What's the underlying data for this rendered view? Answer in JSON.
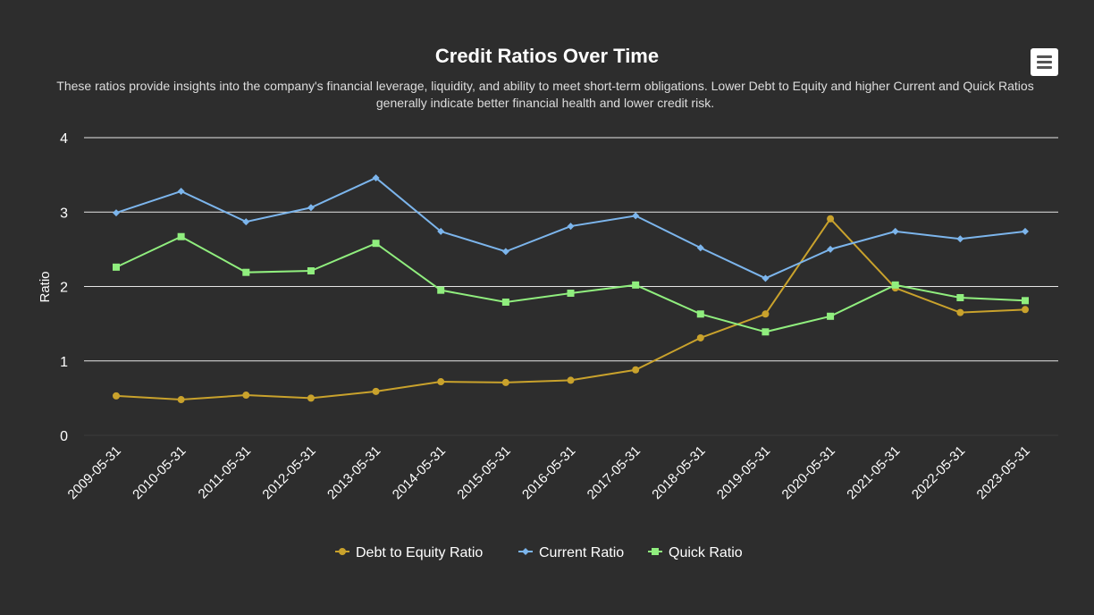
{
  "chart_data": {
    "type": "line",
    "title": "Credit Ratios Over Time",
    "subtitle": "These ratios provide insights into the company's financial leverage, liquidity, and ability to meet short-term obligations. Lower Debt to Equity and higher Current and Quick Ratios generally indicate better financial health and lower credit risk.",
    "xlabel": "",
    "ylabel": "Ratio",
    "ylim": [
      0,
      4
    ],
    "yticks": [
      "0",
      "1",
      "2",
      "3",
      "4"
    ],
    "legend_position": "bottom",
    "categories": [
      "2009-05-31",
      "2010-05-31",
      "2011-05-31",
      "2012-05-31",
      "2013-05-31",
      "2014-05-31",
      "2015-05-31",
      "2016-05-31",
      "2017-05-31",
      "2018-05-31",
      "2019-05-31",
      "2020-05-31",
      "2021-05-31",
      "2022-05-31",
      "2023-05-31"
    ],
    "series": [
      {
        "name": "Debt to Equity Ratio",
        "color": "#c9a22c",
        "marker": "circle",
        "values": [
          0.53,
          0.48,
          0.54,
          0.5,
          0.59,
          0.72,
          0.71,
          0.74,
          0.88,
          1.31,
          1.63,
          2.91,
          1.98,
          1.65,
          1.69
        ]
      },
      {
        "name": "Current Ratio",
        "color": "#7cb5ec",
        "marker": "diamond",
        "values": [
          2.99,
          3.28,
          2.87,
          3.06,
          3.46,
          2.74,
          2.47,
          2.81,
          2.95,
          2.52,
          2.11,
          2.5,
          2.74,
          2.64,
          2.74
        ]
      },
      {
        "name": "Quick Ratio",
        "color": "#90ee7e",
        "marker": "square",
        "values": [
          2.26,
          2.67,
          2.19,
          2.21,
          2.58,
          1.95,
          1.79,
          1.91,
          2.02,
          1.63,
          1.39,
          1.6,
          2.02,
          1.85,
          1.81
        ]
      }
    ]
  }
}
